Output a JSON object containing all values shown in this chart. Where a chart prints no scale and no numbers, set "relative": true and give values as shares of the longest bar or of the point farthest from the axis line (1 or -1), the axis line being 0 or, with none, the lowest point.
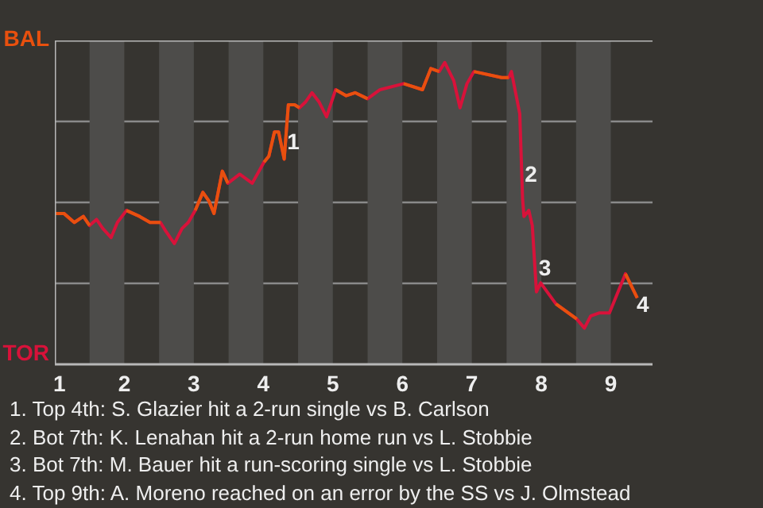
{
  "chart_data": {
    "type": "line",
    "relative": true,
    "grid": "y",
    "xlim": [
      1,
      9.6
    ],
    "xticks": [
      1,
      2,
      3,
      4,
      5,
      6,
      7,
      8,
      9
    ],
    "bands": [
      {
        "axis": "x",
        "from": 1.5,
        "to": 2,
        "color": "#4d4c4a"
      },
      {
        "axis": "x",
        "from": 2.5,
        "to": 3,
        "color": "#4d4c4a"
      },
      {
        "axis": "x",
        "from": 3.5,
        "to": 4,
        "color": "#4d4c4a"
      },
      {
        "axis": "x",
        "from": 4.5,
        "to": 5,
        "color": "#4d4c4a"
      },
      {
        "axis": "x",
        "from": 5.5,
        "to": 6,
        "color": "#4d4c4a"
      },
      {
        "axis": "x",
        "from": 6.5,
        "to": 7,
        "color": "#4d4c4a"
      },
      {
        "axis": "x",
        "from": 7.5,
        "to": 8,
        "color": "#4d4c4a"
      },
      {
        "axis": "x",
        "from": 8.5,
        "to": 9,
        "color": "#4d4c4a"
      }
    ],
    "series": [
      {
        "color": "#d8123a",
        "x": [
          1.01,
          1.13,
          1.28,
          1.41,
          1.5,
          1.6,
          1.69,
          1.81,
          1.9,
          2.03,
          2.22,
          2.37,
          2.52,
          2.6,
          2.72,
          2.83,
          2.92,
          3.02,
          3.13,
          3.22,
          3.29,
          3.41,
          3.49,
          3.66,
          3.84,
          4.01,
          4.08,
          4.16,
          4.22,
          4.3,
          4.36,
          4.45,
          4.52,
          4.61,
          4.7,
          4.8,
          4.91,
          5.04,
          5.19,
          5.32,
          5.5,
          5.68,
          6.02,
          6.29,
          6.41,
          6.53,
          6.61,
          6.74,
          6.83,
          6.93,
          7.03,
          7.43,
          7.53,
          7.57,
          7.63,
          7.69,
          7.73,
          7.75,
          7.82,
          7.87,
          7.93,
          7.99,
          8.21,
          8.51,
          8.62,
          8.71,
          8.83,
          8.98,
          9.21,
          9.38
        ],
        "values": [
          0.5,
          0.5,
          0.47,
          0.49,
          0.46,
          0.48,
          0.45,
          0.42,
          0.47,
          0.51,
          0.49,
          0.47,
          0.47,
          0.44,
          0.4,
          0.45,
          0.47,
          0.51,
          0.57,
          0.54,
          0.5,
          0.64,
          0.6,
          0.63,
          0.6,
          0.67,
          0.69,
          0.77,
          0.77,
          0.68,
          0.86,
          0.86,
          0.85,
          0.87,
          0.9,
          0.87,
          0.82,
          0.91,
          0.89,
          0.9,
          0.88,
          0.91,
          0.93,
          0.91,
          0.98,
          0.97,
          1.0,
          0.94,
          0.85,
          0.93,
          0.97,
          0.95,
          0.95,
          0.97,
          0.9,
          0.83,
          0.55,
          0.49,
          0.51,
          0.46,
          0.24,
          0.27,
          0.2,
          0.15,
          0.12,
          0.16,
          0.17,
          0.17,
          0.3,
          0.22
        ]
      },
      {
        "color": "#e8500e",
        "x": [
          1.01,
          1.13,
          1.28,
          1.41,
          1.5,
          1.75,
          2.03,
          2.22,
          2.37,
          2.52,
          2.75,
          3.02,
          3.13,
          3.22,
          3.29,
          3.41,
          3.49,
          3.75,
          4.01,
          4.08,
          4.16,
          4.22,
          4.3,
          4.36,
          4.45,
          4.52,
          4.75,
          5.04,
          5.19,
          5.32,
          5.5,
          5.75,
          6.02,
          6.29,
          6.41,
          6.53,
          6.75,
          7.03,
          7.43,
          7.53,
          7.75,
          8.21,
          8.51,
          8.75,
          9.21,
          9.38
        ],
        "values": [
          0.5,
          0.5,
          0.47,
          0.49,
          0.46,
          null,
          0.51,
          0.49,
          0.47,
          0.47,
          null,
          0.51,
          0.57,
          0.54,
          0.5,
          0.64,
          0.6,
          null,
          0.67,
          0.69,
          0.77,
          0.77,
          0.68,
          0.86,
          0.86,
          0.85,
          null,
          0.91,
          0.89,
          0.9,
          0.88,
          null,
          0.93,
          0.91,
          0.98,
          0.97,
          null,
          0.97,
          0.95,
          0.95,
          null,
          0.2,
          0.15,
          null,
          0.3,
          0.22
        ]
      }
    ],
    "annotations": [
      "BAL",
      "TOR",
      {
        "text": "1",
        "x": 4.43,
        "y": 0.74
      },
      {
        "text": "2",
        "x": 7.85,
        "y": 0.63
      },
      {
        "text": "3",
        "x": 8.05,
        "y": 0.32
      },
      {
        "text": "4",
        "x": 9.46,
        "y": 0.2
      },
      "1. Top 4th: S. Glazier hit a 2-run single vs B. Carlson",
      "2. Bot 7th: K. Lenahan hit a 2-run home run vs L. Stobbie",
      "3. Bot 7th: M. Bauer hit a run-scoring single vs L. Stobbie",
      "4. Top 9th: A. Moreno reached on an error by the SS vs J. Olmstead"
    ]
  }
}
